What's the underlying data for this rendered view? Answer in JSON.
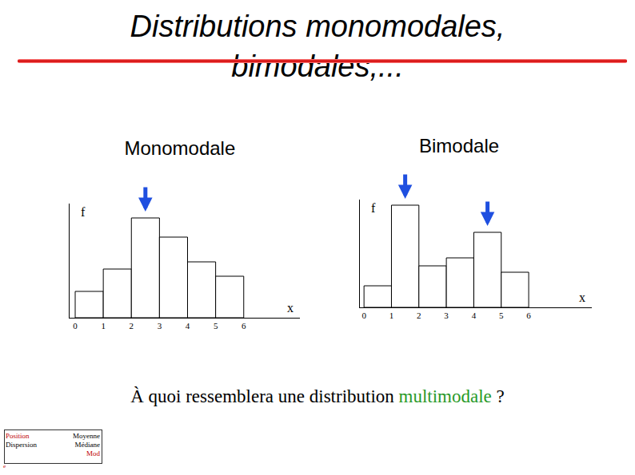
{
  "title": [
    "Distributions monomodales,",
    "bimodales,..."
  ],
  "chart_data": [
    {
      "type": "histogram",
      "title": "Monomodale",
      "xlabel": "x",
      "ylabel": "f",
      "bins": [
        0,
        1,
        2,
        3,
        4,
        5,
        6
      ],
      "values": [
        3.3,
        6.1,
        12.5,
        10.1,
        7.0,
        5.2
      ],
      "color": "#ffffff",
      "xlim": [
        -0.2,
        8
      ],
      "xticks": [
        0,
        1,
        2,
        3,
        4,
        5,
        6
      ],
      "ylim": [
        0,
        14.3
      ],
      "grid": false,
      "tick_labels": "x"
    },
    {
      "type": "histogram",
      "title": "Bimodale",
      "xlabel": "x",
      "ylabel": "f",
      "bins": [
        0,
        1,
        2,
        3,
        4,
        5,
        6
      ],
      "values": [
        2.7,
        12.8,
        5.2,
        6.2,
        9.4,
        4.4
      ],
      "color": "#ffffff",
      "xlim": [
        -0.15,
        8.3
      ],
      "xticks": [
        0,
        1,
        2,
        3,
        4,
        5,
        6
      ],
      "ylim": [
        0,
        13.5
      ],
      "grid": false,
      "tick_labels": "x"
    }
  ],
  "question": {
    "before": "À quoi ressemblera une distribution ",
    "highlight": "multimodale",
    "after": " ?"
  },
  "nav": {
    "left": [
      "Position",
      "Dispersion"
    ],
    "right": [
      "Moyenne",
      "Médiane",
      "Mod"
    ],
    "footer": "e"
  }
}
